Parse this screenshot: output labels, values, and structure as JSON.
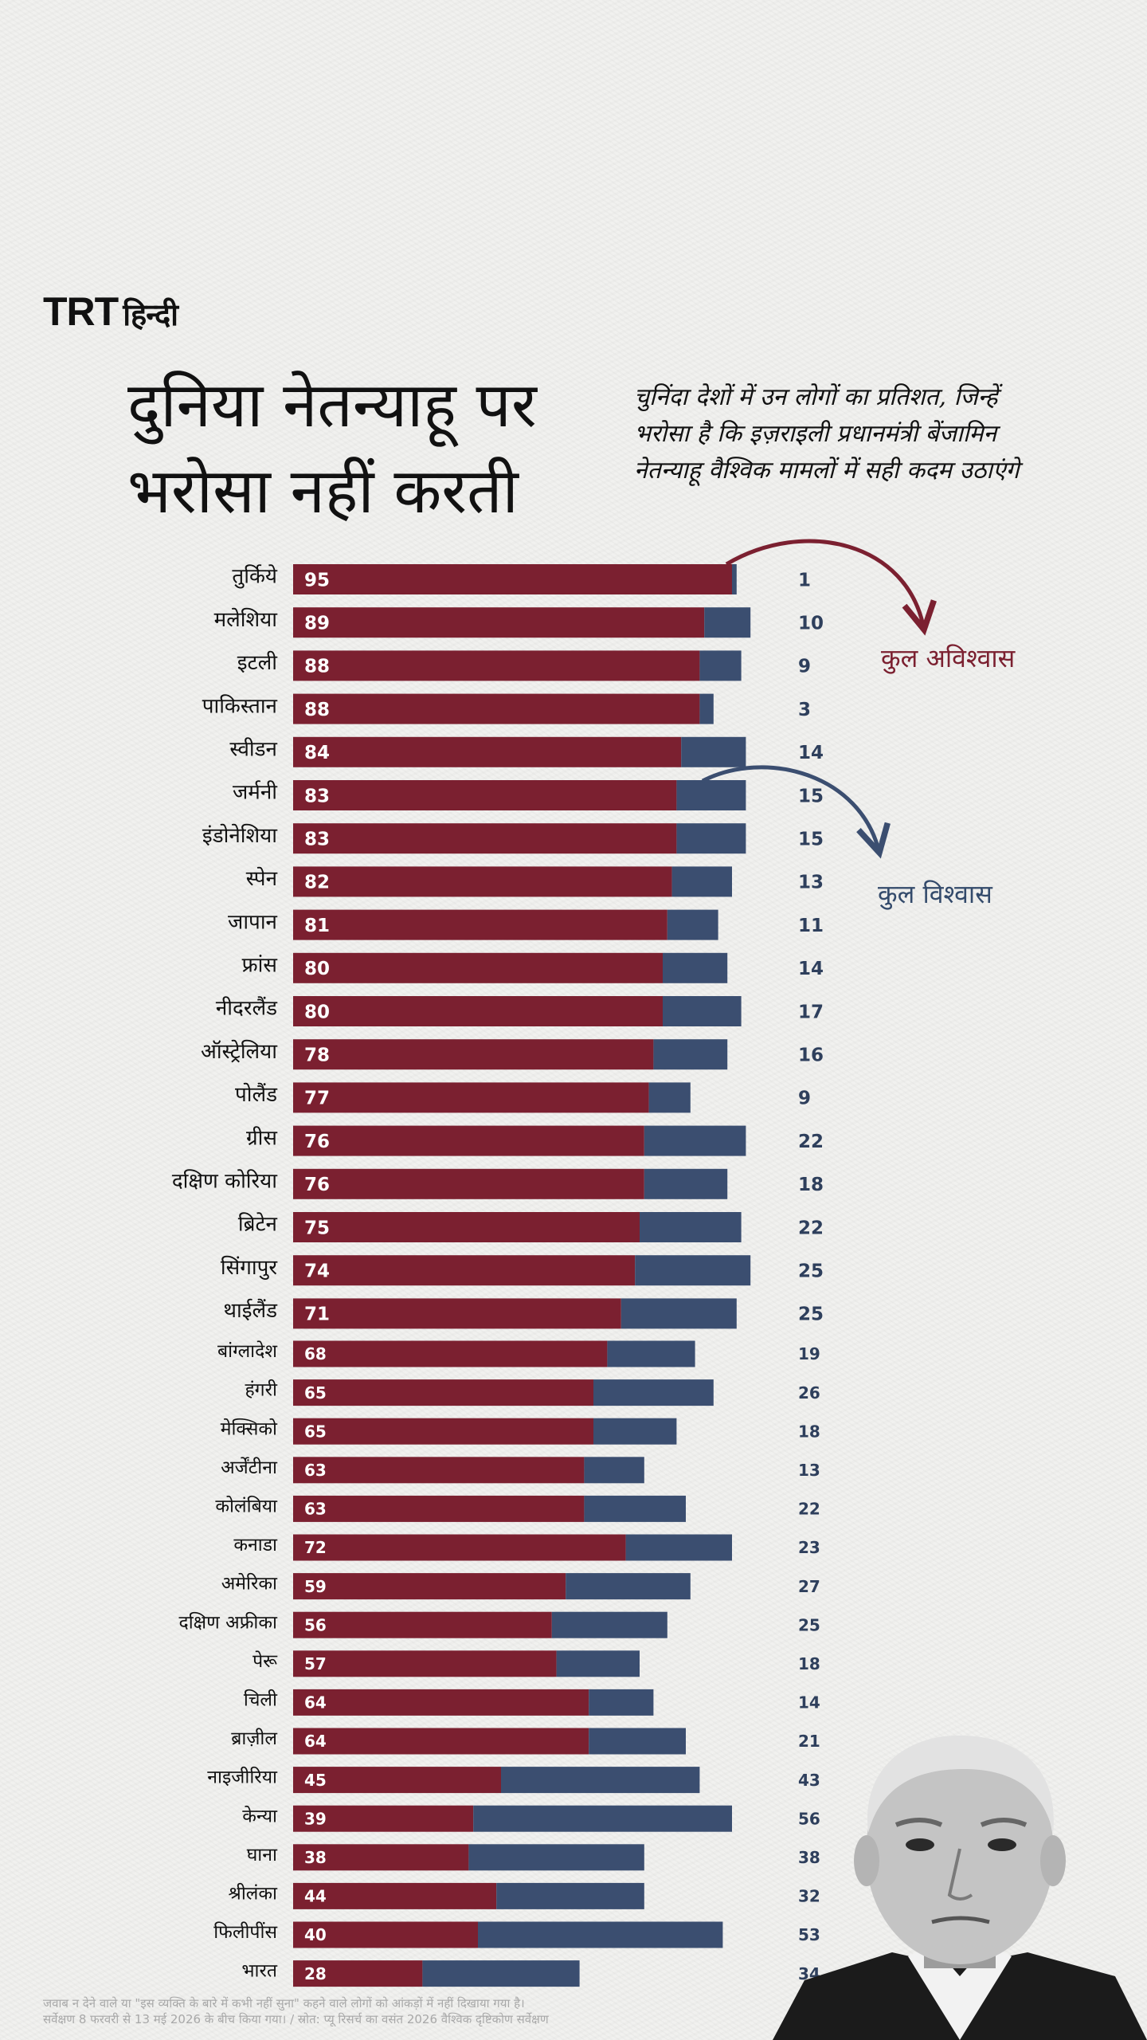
{
  "brand": {
    "logo_main": "TRT",
    "logo_sub": "हिन्दी"
  },
  "title": "दुनिया नेतन्याहू पर भरोसा नहीं करती",
  "subtitle": "चुनिंदा देशों में उन लोगों का प्रतिशत, जिन्हें भरोसा है कि इज़राइली प्रधानमंत्री बेंजामिन नेतन्याहू वैश्विक मामलों में सही कदम उठाएंगे",
  "legend": {
    "distrust": "कुल अविश्वास",
    "trust": "कुल विश्वास"
  },
  "colors": {
    "distrust": "#7b2030",
    "trust": "#3b4e70"
  },
  "footer": {
    "line1": "जवाब न देने वाले या \"इस व्यक्ति के बारे में कभी नहीं सुना\" कहने वाले लोगों को आंकड़ों में नहीं दिखाया गया है।",
    "line2": "सर्वेक्षण 8 फरवरी से 13 मई 2026 के बीच किया गया। / स्रोत: प्यू रिसर्च का वसंत 2026 वैश्विक दृष्टिकोण सर्वेक्षण"
  },
  "chart_data": {
    "type": "bar",
    "stacked": true,
    "orientation": "horizontal",
    "categories": [
      "तुर्किये",
      "मलेशिया",
      "इटली",
      "पाकिस्तान",
      "स्वीडन",
      "जर्मनी",
      "इंडोनेशिया",
      "स्पेन",
      "जापान",
      "फ्रांस",
      "नीदरलैंड",
      "ऑस्ट्रेलिया",
      "पोलैंड",
      "ग्रीस",
      "दक्षिण कोरिया",
      "ब्रिटेन",
      "सिंगापुर",
      "थाईलैंड",
      "बांग्लादेश",
      "हंगरी",
      "मेक्सिको",
      "अर्जेंटीना",
      "कोलंबिया",
      "कनाडा",
      "अमेरिका",
      "दक्षिण अफ्रीका",
      "पेरू",
      "चिली",
      "ब्राज़ील",
      "नाइजीरिया",
      "केन्या",
      "घाना",
      "श्रीलंका",
      "फिलीपींस",
      "भारत"
    ],
    "series": [
      {
        "name": "कुल अविश्वास",
        "values": [
          95,
          89,
          88,
          88,
          84,
          83,
          83,
          82,
          81,
          80,
          80,
          78,
          77,
          76,
          76,
          75,
          74,
          71,
          68,
          65,
          65,
          63,
          63,
          72,
          59,
          56,
          57,
          64,
          64,
          45,
          39,
          38,
          44,
          40,
          28
        ]
      },
      {
        "name": "कुल विश्वास",
        "values": [
          1,
          10,
          9,
          3,
          14,
          15,
          15,
          13,
          11,
          14,
          17,
          16,
          9,
          22,
          18,
          22,
          25,
          25,
          19,
          26,
          18,
          13,
          22,
          23,
          27,
          25,
          18,
          14,
          21,
          43,
          56,
          38,
          32,
          53,
          34
        ]
      }
    ],
    "xlim": [
      0,
      120
    ]
  }
}
